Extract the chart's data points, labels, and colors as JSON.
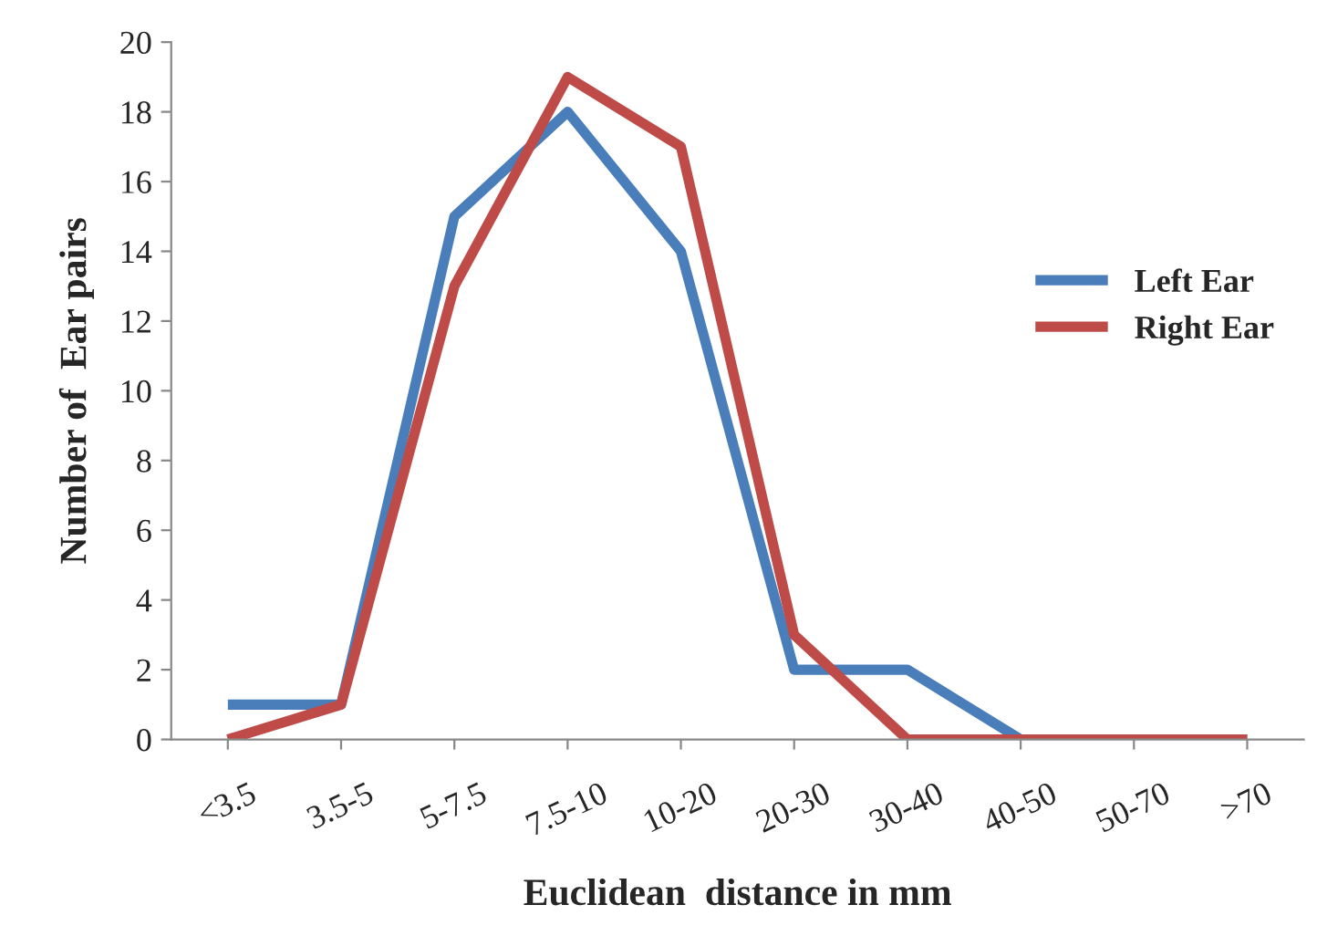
{
  "chart_data": {
    "type": "line",
    "xlabel": "Euclidean  distance in mm",
    "ylabel": "Number of  Ear pairs",
    "categories": [
      "<3.5",
      "3.5-5",
      "5-7.5",
      "7.5-10",
      "10-20",
      "20-30",
      "30-40",
      "40-50",
      "50-70",
      ">70"
    ],
    "series": [
      {
        "name": "Left Ear",
        "color": "#4a7ebb",
        "values": [
          1,
          1,
          15,
          18,
          14,
          2,
          2,
          0,
          0,
          0
        ]
      },
      {
        "name": "Right Ear",
        "color": "#be4b48",
        "values": [
          0,
          1,
          13,
          19,
          17,
          3,
          0,
          0,
          0,
          0
        ]
      }
    ],
    "ylim": [
      0,
      20
    ],
    "yticks": [
      0,
      2,
      4,
      6,
      8,
      10,
      12,
      14,
      16,
      18,
      20
    ],
    "grid": false,
    "legend": "right",
    "marker": "none",
    "line_style": "solid"
  }
}
